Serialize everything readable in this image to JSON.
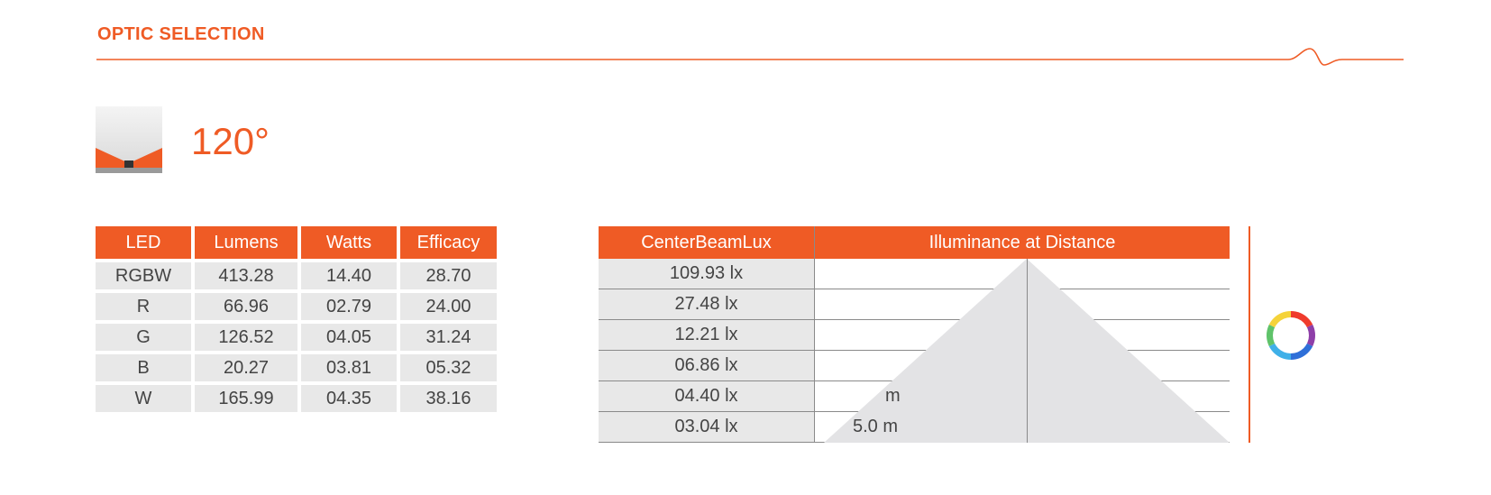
{
  "section": {
    "title": "OPTIC SELECTION"
  },
  "optic": {
    "angle": "120°"
  },
  "led_table": {
    "headers": [
      "LED",
      "Lumens",
      "Watts",
      "Efficacy"
    ],
    "rows": [
      [
        "RGBW",
        "413.28",
        "14.40",
        "28.70"
      ],
      [
        "R",
        "66.96",
        "02.79",
        "24.00"
      ],
      [
        "G",
        "126.52",
        "04.05",
        "31.24"
      ],
      [
        "B",
        "20.27",
        "03.81",
        "05.32"
      ],
      [
        "W",
        "165.99",
        "04.35",
        "38.16"
      ]
    ]
  },
  "lux_table": {
    "headers": [
      "CenterBeamLux",
      "Illuminance at Distance"
    ],
    "values": [
      "109.93 lx",
      "27.48 lx",
      "12.21 lx",
      "06.86 lx",
      "04.40 lx",
      "03.04 lx"
    ],
    "distance_labels": [
      "",
      "",
      "",
      "",
      "m",
      "5.0 m"
    ]
  },
  "colors": {
    "accent": "#ef5b25",
    "cell_bg": "#e8e8e8",
    "cone": "#e6e6e8"
  },
  "icons": {
    "optic": "optic-120-icon",
    "color_wheel": "color-wheel-icon"
  }
}
